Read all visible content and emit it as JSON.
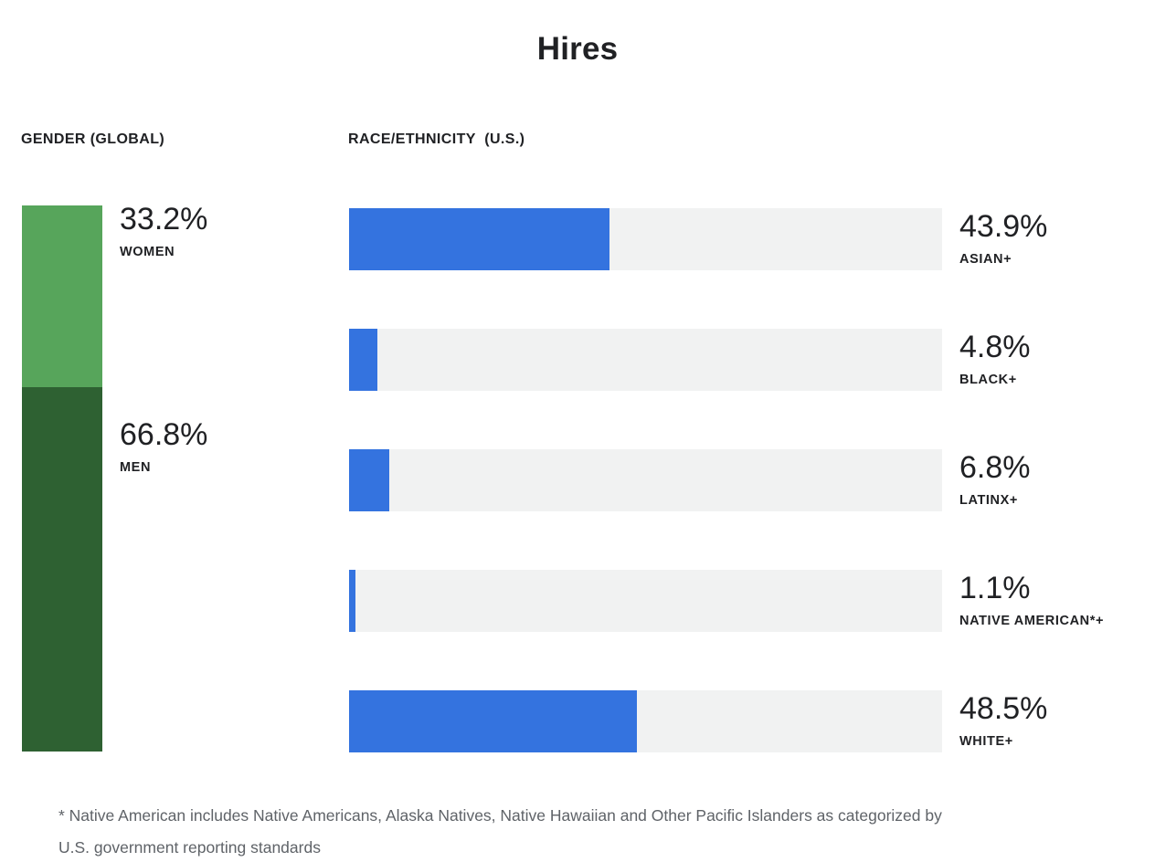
{
  "page": {
    "title": "Hires",
    "footnote": {
      "line1": "* Native American includes Native Americans, Alaska Natives, Native Hawaiian and Other Pacific Islanders as categorized by",
      "line2": "U.S. government reporting standards"
    }
  },
  "colors": {
    "text_primary": "#202124",
    "footnote_gray": "#5f6368",
    "women_green": "#57a55b",
    "men_green": "#2e6132",
    "bar_blue": "#3473df",
    "track_gray": "#f1f2f2"
  },
  "chart_data": [
    {
      "type": "bar",
      "subtype": "vertical-stacked",
      "title": "GENDER (GLOBAL)",
      "categories": [
        "WOMEN",
        "MEN"
      ],
      "values": [
        33.2,
        66.8
      ],
      "display_values": [
        "33.2%",
        "66.8%"
      ],
      "segment_colors": [
        "#57a55b",
        "#2e6132"
      ],
      "unit": "%",
      "ylim": [
        0,
        100
      ],
      "grid": false,
      "legend": "none"
    },
    {
      "type": "bar",
      "subtype": "horizontal",
      "title": "RACE/ETHNICITY  (U.S.)",
      "categories": [
        "ASIAN+",
        "BLACK+",
        "LATINX+",
        "NATIVE AMERICAN*+",
        "WHITE+"
      ],
      "values": [
        43.9,
        4.8,
        6.8,
        1.1,
        48.5
      ],
      "display_values": [
        "43.9%",
        "4.8%",
        "6.8%",
        "1.1%",
        "48.5%"
      ],
      "bar_color": "#3473df",
      "track_color": "#f1f2f2",
      "unit": "%",
      "xlim": [
        0,
        100
      ],
      "grid": false,
      "legend": "none"
    }
  ]
}
